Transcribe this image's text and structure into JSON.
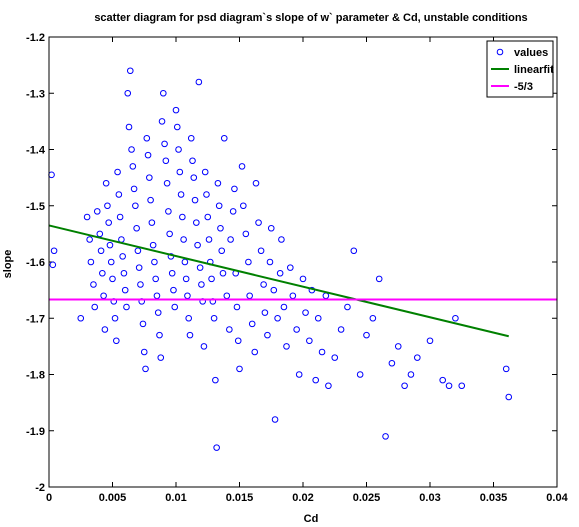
{
  "chart_data": {
    "type": "scatter",
    "title": "scatter diagram for psd diagram`s slope of w` parameter & Cd, unstable conditions",
    "xlabel": "Cd",
    "ylabel": "slope",
    "xlim": [
      0,
      0.04
    ],
    "ylim": [
      -2,
      -1.2
    ],
    "xticks": [
      0,
      0.005,
      0.01,
      0.015,
      0.02,
      0.025,
      0.03,
      0.035,
      0.04
    ],
    "xtick_labels": [
      "0",
      "0.005",
      "0.01",
      "0.015",
      "0.02",
      "0.025",
      "0.03",
      "0.035",
      "0.04"
    ],
    "yticks": [
      -2,
      -1.9,
      -1.8,
      -1.7,
      -1.6,
      -1.5,
      -1.4,
      -1.3,
      -1.2
    ],
    "ytick_labels": [
      "-2",
      "-1.9",
      "-1.8",
      "-1.7",
      "-1.6",
      "-1.5",
      "-1.4",
      "-1.3",
      "-1.2"
    ],
    "grid": false,
    "legend_position": "top-right",
    "series": [
      {
        "name": "values",
        "kind": "scatter",
        "marker": "circle",
        "color": "#0000ff",
        "points": [
          [
            0.0002,
            -1.445
          ],
          [
            0.0003,
            -1.605
          ],
          [
            0.0004,
            -1.58
          ],
          [
            0.0025,
            -1.7
          ],
          [
            0.003,
            -1.52
          ],
          [
            0.0032,
            -1.56
          ],
          [
            0.0033,
            -1.6
          ],
          [
            0.0035,
            -1.64
          ],
          [
            0.0036,
            -1.68
          ],
          [
            0.0038,
            -1.51
          ],
          [
            0.004,
            -1.55
          ],
          [
            0.0041,
            -1.58
          ],
          [
            0.0042,
            -1.62
          ],
          [
            0.0043,
            -1.66
          ],
          [
            0.0044,
            -1.72
          ],
          [
            0.0045,
            -1.46
          ],
          [
            0.0046,
            -1.5
          ],
          [
            0.0047,
            -1.53
          ],
          [
            0.0048,
            -1.57
          ],
          [
            0.0049,
            -1.6
          ],
          [
            0.005,
            -1.63
          ],
          [
            0.0051,
            -1.67
          ],
          [
            0.0052,
            -1.7
          ],
          [
            0.0053,
            -1.74
          ],
          [
            0.0054,
            -1.44
          ],
          [
            0.0055,
            -1.48
          ],
          [
            0.0056,
            -1.52
          ],
          [
            0.0057,
            -1.56
          ],
          [
            0.0058,
            -1.59
          ],
          [
            0.0059,
            -1.62
          ],
          [
            0.006,
            -1.65
          ],
          [
            0.0061,
            -1.68
          ],
          [
            0.0062,
            -1.3
          ],
          [
            0.0063,
            -1.36
          ],
          [
            0.0064,
            -1.26
          ],
          [
            0.0065,
            -1.4
          ],
          [
            0.0066,
            -1.43
          ],
          [
            0.0067,
            -1.47
          ],
          [
            0.0068,
            -1.5
          ],
          [
            0.0069,
            -1.54
          ],
          [
            0.007,
            -1.58
          ],
          [
            0.0071,
            -1.61
          ],
          [
            0.0072,
            -1.64
          ],
          [
            0.0073,
            -1.67
          ],
          [
            0.0074,
            -1.71
          ],
          [
            0.0075,
            -1.76
          ],
          [
            0.0076,
            -1.79
          ],
          [
            0.0077,
            -1.38
          ],
          [
            0.0078,
            -1.41
          ],
          [
            0.0079,
            -1.45
          ],
          [
            0.008,
            -1.49
          ],
          [
            0.0081,
            -1.53
          ],
          [
            0.0082,
            -1.57
          ],
          [
            0.0083,
            -1.6
          ],
          [
            0.0084,
            -1.63
          ],
          [
            0.0085,
            -1.66
          ],
          [
            0.0086,
            -1.69
          ],
          [
            0.0087,
            -1.73
          ],
          [
            0.0088,
            -1.77
          ],
          [
            0.0089,
            -1.35
          ],
          [
            0.009,
            -1.3
          ],
          [
            0.0091,
            -1.39
          ],
          [
            0.0092,
            -1.42
          ],
          [
            0.0093,
            -1.46
          ],
          [
            0.0094,
            -1.51
          ],
          [
            0.0095,
            -1.55
          ],
          [
            0.0096,
            -1.59
          ],
          [
            0.0097,
            -1.62
          ],
          [
            0.0098,
            -1.65
          ],
          [
            0.0099,
            -1.68
          ],
          [
            0.01,
            -1.33
          ],
          [
            0.0101,
            -1.36
          ],
          [
            0.0102,
            -1.4
          ],
          [
            0.0103,
            -1.44
          ],
          [
            0.0104,
            -1.48
          ],
          [
            0.0105,
            -1.52
          ],
          [
            0.0106,
            -1.56
          ],
          [
            0.0107,
            -1.6
          ],
          [
            0.0108,
            -1.63
          ],
          [
            0.0109,
            -1.66
          ],
          [
            0.011,
            -1.7
          ],
          [
            0.0111,
            -1.73
          ],
          [
            0.0112,
            -1.38
          ],
          [
            0.0113,
            -1.42
          ],
          [
            0.0114,
            -1.45
          ],
          [
            0.0115,
            -1.49
          ],
          [
            0.0116,
            -1.53
          ],
          [
            0.0117,
            -1.57
          ],
          [
            0.0118,
            -1.28
          ],
          [
            0.0119,
            -1.61
          ],
          [
            0.012,
            -1.64
          ],
          [
            0.0121,
            -1.67
          ],
          [
            0.0122,
            -1.75
          ],
          [
            0.0123,
            -1.44
          ],
          [
            0.0124,
            -1.48
          ],
          [
            0.0125,
            -1.52
          ],
          [
            0.0126,
            -1.56
          ],
          [
            0.0127,
            -1.6
          ],
          [
            0.0128,
            -1.63
          ],
          [
            0.0129,
            -1.67
          ],
          [
            0.013,
            -1.7
          ],
          [
            0.0131,
            -1.81
          ],
          [
            0.0132,
            -1.93
          ],
          [
            0.0133,
            -1.46
          ],
          [
            0.0134,
            -1.5
          ],
          [
            0.0135,
            -1.54
          ],
          [
            0.0136,
            -1.58
          ],
          [
            0.0137,
            -1.62
          ],
          [
            0.0138,
            -1.38
          ],
          [
            0.014,
            -1.66
          ],
          [
            0.0142,
            -1.72
          ],
          [
            0.0143,
            -1.56
          ],
          [
            0.0145,
            -1.51
          ],
          [
            0.0146,
            -1.47
          ],
          [
            0.0147,
            -1.62
          ],
          [
            0.0148,
            -1.68
          ],
          [
            0.0149,
            -1.74
          ],
          [
            0.015,
            -1.79
          ],
          [
            0.0152,
            -1.43
          ],
          [
            0.0153,
            -1.5
          ],
          [
            0.0155,
            -1.55
          ],
          [
            0.0157,
            -1.6
          ],
          [
            0.0158,
            -1.66
          ],
          [
            0.016,
            -1.71
          ],
          [
            0.0162,
            -1.76
          ],
          [
            0.0163,
            -1.46
          ],
          [
            0.0165,
            -1.53
          ],
          [
            0.0167,
            -1.58
          ],
          [
            0.0169,
            -1.64
          ],
          [
            0.017,
            -1.69
          ],
          [
            0.0172,
            -1.73
          ],
          [
            0.0174,
            -1.6
          ],
          [
            0.0175,
            -1.54
          ],
          [
            0.0177,
            -1.65
          ],
          [
            0.0178,
            -1.88
          ],
          [
            0.018,
            -1.7
          ],
          [
            0.0182,
            -1.62
          ],
          [
            0.0183,
            -1.56
          ],
          [
            0.0185,
            -1.68
          ],
          [
            0.0187,
            -1.75
          ],
          [
            0.019,
            -1.61
          ],
          [
            0.0192,
            -1.66
          ],
          [
            0.0195,
            -1.72
          ],
          [
            0.0197,
            -1.8
          ],
          [
            0.02,
            -1.63
          ],
          [
            0.0202,
            -1.69
          ],
          [
            0.0205,
            -1.74
          ],
          [
            0.0207,
            -1.65
          ],
          [
            0.021,
            -1.81
          ],
          [
            0.0212,
            -1.7
          ],
          [
            0.0215,
            -1.76
          ],
          [
            0.0218,
            -1.66
          ],
          [
            0.022,
            -1.82
          ],
          [
            0.0225,
            -1.77
          ],
          [
            0.023,
            -1.72
          ],
          [
            0.0235,
            -1.68
          ],
          [
            0.024,
            -1.58
          ],
          [
            0.0245,
            -1.8
          ],
          [
            0.025,
            -1.73
          ],
          [
            0.0255,
            -1.7
          ],
          [
            0.026,
            -1.63
          ],
          [
            0.0265,
            -1.91
          ],
          [
            0.027,
            -1.78
          ],
          [
            0.0275,
            -1.75
          ],
          [
            0.028,
            -1.82
          ],
          [
            0.0285,
            -1.8
          ],
          [
            0.029,
            -1.77
          ],
          [
            0.03,
            -1.74
          ],
          [
            0.031,
            -1.81
          ],
          [
            0.0315,
            -1.82
          ],
          [
            0.032,
            -1.7
          ],
          [
            0.0325,
            -1.82
          ],
          [
            0.036,
            -1.79
          ],
          [
            0.0362,
            -1.84
          ]
        ]
      },
      {
        "name": "linearfit",
        "kind": "line",
        "color": "#008000",
        "points": [
          [
            0.0,
            -1.535
          ],
          [
            0.0362,
            -1.732
          ]
        ]
      },
      {
        "name": "-5/3",
        "kind": "line",
        "color": "#ff00ff",
        "points": [
          [
            0.0,
            -1.6667
          ],
          [
            0.04,
            -1.6667
          ]
        ]
      }
    ]
  }
}
